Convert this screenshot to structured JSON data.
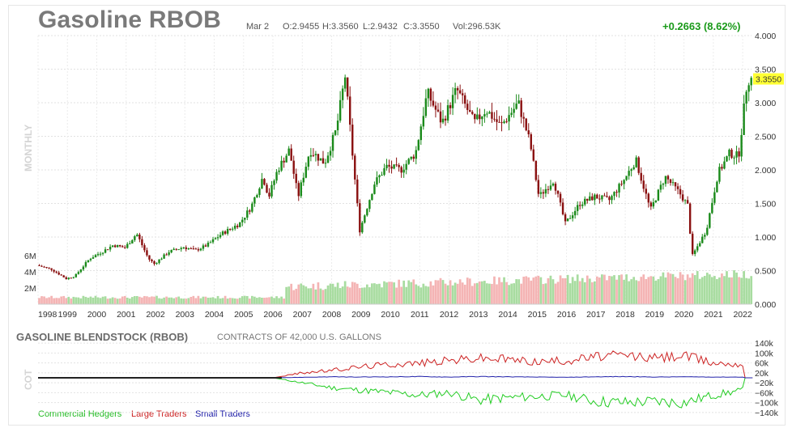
{
  "header": {
    "title": "Gasoline RBOB",
    "date": "Mar 2",
    "open": "O:2.9455",
    "high": "H:3.3560",
    "low": "L:2.9432",
    "close": "C:3.3550",
    "volume": "Vol:296.53K",
    "change": "+0.2663 (8.62%)"
  },
  "colors": {
    "up": "#1a8a1a",
    "down": "#8a1010",
    "vol_up": "#a8dca0",
    "vol_down": "#f4b4b4",
    "commercial": "#22cc22",
    "large": "#cc2222",
    "small": "#2222aa",
    "last_price_bg": "#ffff33"
  },
  "chart_data": [
    {
      "type": "candlestick",
      "period_label": "MONTHLY",
      "last_price_label": "3.3550",
      "y_ticks": [
        "0.000",
        "0.500",
        "1.000",
        "1.500",
        "2.000",
        "2.500",
        "3.000",
        "3.500",
        "4.000"
      ],
      "ylim": [
        0,
        4
      ],
      "x_ticks": [
        "1998",
        "1999",
        "2000",
        "2001",
        "2002",
        "2003",
        "2004",
        "2005",
        "2006",
        "2007",
        "2008",
        "2009",
        "2010",
        "2011",
        "2012",
        "2013",
        "2014",
        "2015",
        "2016",
        "2017",
        "2018",
        "2019",
        "2020",
        "2021",
        "2022"
      ],
      "volume_ticks": [
        "2M",
        "4M",
        "6M"
      ],
      "approx_close_path": [
        [
          1998.0,
          0.58
        ],
        [
          1998.5,
          0.52
        ],
        [
          1999.0,
          0.38
        ],
        [
          1999.3,
          0.42
        ],
        [
          1999.8,
          0.68
        ],
        [
          2000.3,
          0.8
        ],
        [
          2000.6,
          0.88
        ],
        [
          2001.0,
          0.84
        ],
        [
          2001.4,
          1.05
        ],
        [
          2001.8,
          0.68
        ],
        [
          2002.0,
          0.6
        ],
        [
          2002.5,
          0.78
        ],
        [
          2003.0,
          0.85
        ],
        [
          2003.4,
          0.8
        ],
        [
          2003.8,
          0.88
        ],
        [
          2004.3,
          1.05
        ],
        [
          2004.9,
          1.2
        ],
        [
          2005.3,
          1.45
        ],
        [
          2005.7,
          1.9
        ],
        [
          2005.9,
          1.6
        ],
        [
          2006.2,
          2.0
        ],
        [
          2006.6,
          2.3
        ],
        [
          2006.9,
          1.6
        ],
        [
          2007.3,
          2.3
        ],
        [
          2007.8,
          2.1
        ],
        [
          2008.2,
          2.6
        ],
        [
          2008.5,
          3.4
        ],
        [
          2008.8,
          2.0
        ],
        [
          2009.0,
          1.1
        ],
        [
          2009.5,
          1.8
        ],
        [
          2009.9,
          2.05
        ],
        [
          2010.4,
          2.0
        ],
        [
          2010.9,
          2.25
        ],
        [
          2011.3,
          3.15
        ],
        [
          2011.8,
          2.7
        ],
        [
          2012.3,
          3.2
        ],
        [
          2012.9,
          2.7
        ],
        [
          2013.3,
          2.9
        ],
        [
          2013.8,
          2.65
        ],
        [
          2014.4,
          3.0
        ],
        [
          2014.8,
          2.4
        ],
        [
          2015.1,
          1.6
        ],
        [
          2015.6,
          1.85
        ],
        [
          2016.0,
          1.2
        ],
        [
          2016.5,
          1.5
        ],
        [
          2017.0,
          1.6
        ],
        [
          2017.5,
          1.55
        ],
        [
          2018.0,
          1.85
        ],
        [
          2018.4,
          2.15
        ],
        [
          2018.9,
          1.4
        ],
        [
          2019.4,
          1.9
        ],
        [
          2019.9,
          1.65
        ],
        [
          2020.2,
          1.45
        ],
        [
          2020.3,
          0.7
        ],
        [
          2020.8,
          1.1
        ],
        [
          2021.2,
          1.95
        ],
        [
          2021.6,
          2.25
        ],
        [
          2021.9,
          2.2
        ],
        [
          2022.2,
          3.355
        ]
      ]
    },
    {
      "type": "line",
      "title": "GASOLINE BLENDSTOCK (RBOB)",
      "subtitle": "CONTRACTS OF 42,000 U.S. GALLONS",
      "side_label": "COT",
      "y_ticks": [
        "140k",
        "100k",
        "60k",
        "20k",
        "−20k",
        "−60k",
        "−100k",
        "−140k"
      ],
      "ylim": [
        -160000,
        160000
      ],
      "series": [
        {
          "name": "Commercial Hedgers",
          "points": [
            [
              1998,
              0
            ],
            [
              2006,
              0
            ],
            [
              2007,
              -20000
            ],
            [
              2008,
              -40000
            ],
            [
              2009,
              -50000
            ],
            [
              2010,
              -60000
            ],
            [
              2011,
              -70000
            ],
            [
              2012,
              -60000
            ],
            [
              2013,
              -90000
            ],
            [
              2014,
              -80000
            ],
            [
              2015,
              -75000
            ],
            [
              2016,
              -70000
            ],
            [
              2017,
              -95000
            ],
            [
              2018,
              -100000
            ],
            [
              2019,
              -95000
            ],
            [
              2020,
              -100000
            ],
            [
              2021,
              -70000
            ],
            [
              2022,
              -50000
            ]
          ]
        },
        {
          "name": "Large Traders",
          "points": [
            [
              1998,
              0
            ],
            [
              2006,
              0
            ],
            [
              2007,
              20000
            ],
            [
              2008,
              30000
            ],
            [
              2009,
              45000
            ],
            [
              2010,
              55000
            ],
            [
              2011,
              60000
            ],
            [
              2012,
              70000
            ],
            [
              2013,
              80000
            ],
            [
              2014,
              75000
            ],
            [
              2015,
              65000
            ],
            [
              2016,
              70000
            ],
            [
              2017,
              85000
            ],
            [
              2018,
              90000
            ],
            [
              2019,
              80000
            ],
            [
              2020,
              90000
            ],
            [
              2021,
              60000
            ],
            [
              2022,
              55000
            ]
          ]
        },
        {
          "name": "Small Traders",
          "points": [
            [
              1998,
              0
            ],
            [
              2006,
              0
            ],
            [
              2007,
              2000
            ],
            [
              2008,
              4000
            ],
            [
              2009,
              3000
            ],
            [
              2010,
              4000
            ],
            [
              2011,
              5000
            ],
            [
              2012,
              3000
            ],
            [
              2013,
              5000
            ],
            [
              2014,
              4000
            ],
            [
              2015,
              3000
            ],
            [
              2016,
              2000
            ],
            [
              2017,
              4000
            ],
            [
              2018,
              5000
            ],
            [
              2019,
              3000
            ],
            [
              2020,
              4000
            ],
            [
              2021,
              3000
            ],
            [
              2022,
              3000
            ]
          ]
        }
      ]
    }
  ]
}
